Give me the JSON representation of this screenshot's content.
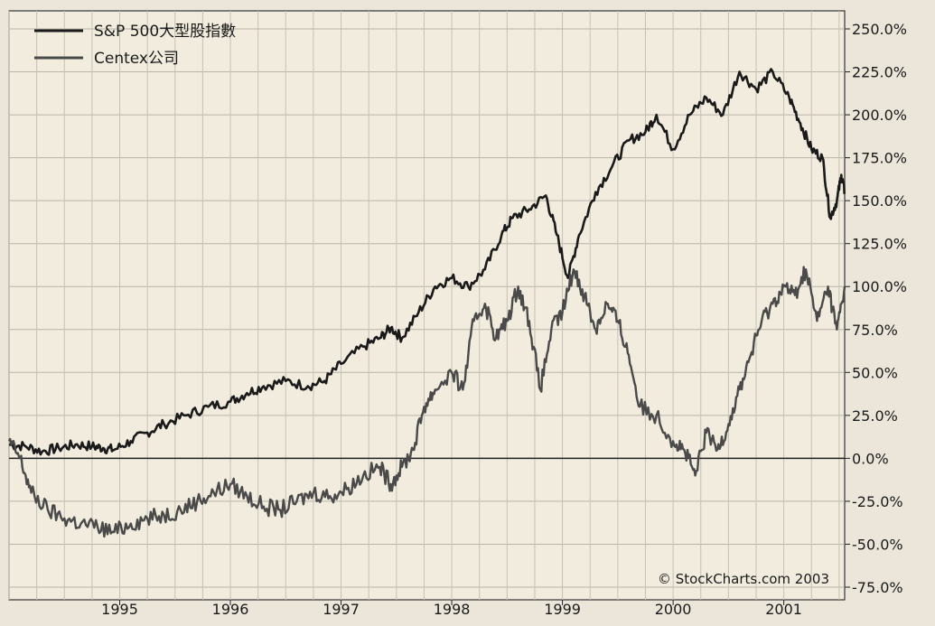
{
  "chart_data": {
    "type": "line",
    "title": "",
    "xlabel": "",
    "ylabel": "",
    "x_ticks": [
      "1995",
      "1996",
      "1997",
      "1998",
      "1999",
      "2000",
      "2001"
    ],
    "y_ticks": [
      "250.0%",
      "225.0%",
      "200.0%",
      "175.0%",
      "150.0%",
      "125.0%",
      "100.0%",
      "75.0%",
      "50.0%",
      "25.0%",
      "0.0%",
      "-25.0%",
      "-50.0%",
      "-75.0%"
    ],
    "ylim": [
      -75,
      250
    ],
    "xlim": [
      1994.0,
      2001.55
    ],
    "grid": true,
    "legend_position": "top-left",
    "credit": "© StockCharts.com 2003",
    "series": [
      {
        "name": "S&P 500大型股指數",
        "color": "#1a1a1a",
        "points": [
          [
            1994.0,
            8
          ],
          [
            1994.15,
            7
          ],
          [
            1994.3,
            4
          ],
          [
            1994.45,
            6
          ],
          [
            1994.6,
            8
          ],
          [
            1994.75,
            7
          ],
          [
            1994.85,
            6
          ],
          [
            1994.95,
            5
          ],
          [
            1995.1,
            10
          ],
          [
            1995.25,
            15
          ],
          [
            1995.4,
            20
          ],
          [
            1995.6,
            25
          ],
          [
            1995.8,
            30
          ],
          [
            1996.0,
            33
          ],
          [
            1996.15,
            38
          ],
          [
            1996.3,
            42
          ],
          [
            1996.5,
            45
          ],
          [
            1996.7,
            42
          ],
          [
            1996.85,
            45
          ],
          [
            1997.0,
            55
          ],
          [
            1997.2,
            65
          ],
          [
            1997.35,
            70
          ],
          [
            1997.45,
            76
          ],
          [
            1997.55,
            70
          ],
          [
            1997.7,
            85
          ],
          [
            1997.85,
            100
          ],
          [
            1998.0,
            105
          ],
          [
            1998.15,
            100
          ],
          [
            1998.3,
            110
          ],
          [
            1998.45,
            130
          ],
          [
            1998.55,
            140
          ],
          [
            1998.7,
            145
          ],
          [
            1998.85,
            153
          ],
          [
            1998.95,
            130
          ],
          [
            1999.05,
            105
          ],
          [
            1999.15,
            130
          ],
          [
            1999.3,
            155
          ],
          [
            1999.45,
            170
          ],
          [
            1999.6,
            185
          ],
          [
            1999.75,
            190
          ],
          [
            1999.85,
            200
          ],
          [
            2000.0,
            180
          ],
          [
            2000.15,
            200
          ],
          [
            2000.3,
            210
          ],
          [
            2000.45,
            200
          ],
          [
            2000.6,
            225
          ],
          [
            2000.75,
            215
          ],
          [
            2000.9,
            225
          ],
          [
            2001.05,
            210
          ],
          [
            2001.15,
            195
          ],
          [
            2001.25,
            180
          ],
          [
            2001.35,
            175
          ],
          [
            2001.42,
            140
          ],
          [
            2001.48,
            150
          ],
          [
            2001.52,
            165
          ],
          [
            2001.55,
            155
          ]
        ]
      },
      {
        "name": "Centex公司",
        "color": "#4a4a4a",
        "points": [
          [
            1994.0,
            10
          ],
          [
            1994.1,
            0
          ],
          [
            1994.2,
            -20
          ],
          [
            1994.35,
            -30
          ],
          [
            1994.5,
            -35
          ],
          [
            1994.65,
            -38
          ],
          [
            1994.8,
            -40
          ],
          [
            1994.95,
            -43
          ],
          [
            1995.1,
            -38
          ],
          [
            1995.25,
            -35
          ],
          [
            1995.4,
            -33
          ],
          [
            1995.55,
            -30
          ],
          [
            1995.7,
            -25
          ],
          [
            1995.85,
            -20
          ],
          [
            1996.0,
            -15
          ],
          [
            1996.15,
            -22
          ],
          [
            1996.3,
            -28
          ],
          [
            1996.45,
            -30
          ],
          [
            1996.6,
            -25
          ],
          [
            1996.75,
            -20
          ],
          [
            1996.9,
            -22
          ],
          [
            1997.05,
            -18
          ],
          [
            1997.2,
            -10
          ],
          [
            1997.35,
            -5
          ],
          [
            1997.45,
            -15
          ],
          [
            1997.55,
            -5
          ],
          [
            1997.65,
            5
          ],
          [
            1997.75,
            30
          ],
          [
            1997.85,
            40
          ],
          [
            1998.0,
            50
          ],
          [
            1998.1,
            40
          ],
          [
            1998.2,
            80
          ],
          [
            1998.3,
            90
          ],
          [
            1998.4,
            70
          ],
          [
            1998.5,
            80
          ],
          [
            1998.6,
            100
          ],
          [
            1998.7,
            80
          ],
          [
            1998.8,
            40
          ],
          [
            1998.9,
            75
          ],
          [
            1999.0,
            85
          ],
          [
            1999.1,
            110
          ],
          [
            1999.2,
            95
          ],
          [
            1999.3,
            75
          ],
          [
            1999.4,
            90
          ],
          [
            1999.5,
            80
          ],
          [
            1999.6,
            60
          ],
          [
            1999.7,
            30
          ],
          [
            1999.85,
            25
          ],
          [
            2000.0,
            10
          ],
          [
            2000.1,
            5
          ],
          [
            2000.2,
            -10
          ],
          [
            2000.3,
            15
          ],
          [
            2000.4,
            5
          ],
          [
            2000.5,
            20
          ],
          [
            2000.6,
            40
          ],
          [
            2000.7,
            60
          ],
          [
            2000.8,
            80
          ],
          [
            2000.9,
            90
          ],
          [
            2001.0,
            100
          ],
          [
            2001.1,
            95
          ],
          [
            2001.2,
            110
          ],
          [
            2001.3,
            80
          ],
          [
            2001.4,
            100
          ],
          [
            2001.48,
            75
          ],
          [
            2001.55,
            100
          ]
        ]
      }
    ]
  }
}
